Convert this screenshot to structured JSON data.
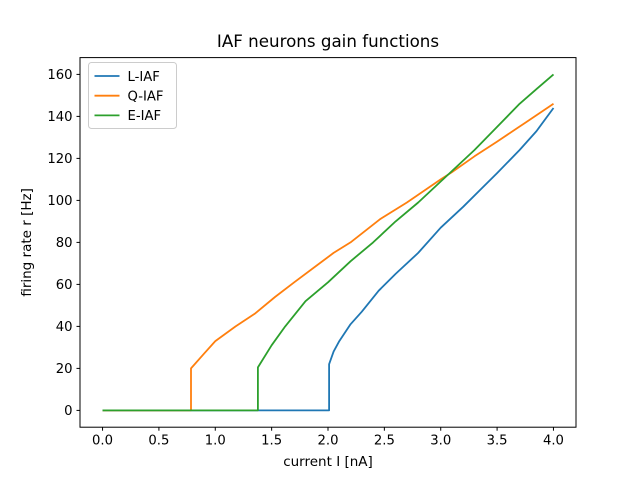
{
  "figure": {
    "background": "#ffffff"
  },
  "chart_data": {
    "type": "line",
    "title": "IAF neurons gain functions",
    "xlabel": "current I [nA]",
    "ylabel": "firing rate r [Hz]",
    "xlim": [
      -0.2,
      4.2
    ],
    "ylim": [
      -8,
      168
    ],
    "grid": false,
    "xticks": {
      "values": [
        0,
        0.5,
        1.0,
        1.5,
        2.0,
        2.5,
        3.0,
        3.5,
        4.0
      ],
      "labels": [
        "0.0",
        "0.5",
        "1.0",
        "1.5",
        "2.0",
        "2.5",
        "3.0",
        "3.5",
        "4.0"
      ]
    },
    "yticks": {
      "values": [
        0,
        20,
        40,
        60,
        80,
        100,
        120,
        140,
        160
      ],
      "labels": [
        "0",
        "20",
        "40",
        "60",
        "80",
        "100",
        "120",
        "140",
        "160"
      ]
    },
    "legend": {
      "position": "upper-left",
      "border_color": "#cccccc",
      "background": "#ffffff"
    },
    "axis_color": "#000000",
    "series": [
      {
        "name": "L-IAF",
        "color": "#1f77b4",
        "threshold_nA": 2.01,
        "points": [
          [
            0,
            0
          ],
          [
            2.01,
            0
          ],
          [
            2.01,
            22
          ],
          [
            2.05,
            28
          ],
          [
            2.1,
            33
          ],
          [
            2.2,
            41
          ],
          [
            2.3,
            47
          ],
          [
            2.45,
            57
          ],
          [
            2.6,
            65
          ],
          [
            2.8,
            75
          ],
          [
            3.0,
            87
          ],
          [
            3.2,
            97
          ],
          [
            3.35,
            105
          ],
          [
            3.5,
            113
          ],
          [
            3.7,
            124
          ],
          [
            3.85,
            133
          ],
          [
            4.0,
            144
          ]
        ]
      },
      {
        "name": "Q-IAF",
        "color": "#ff7f0e",
        "threshold_nA": 0.785,
        "points": [
          [
            0,
            0
          ],
          [
            0.785,
            0
          ],
          [
            0.785,
            20
          ],
          [
            0.9,
            27
          ],
          [
            1.0,
            33
          ],
          [
            1.18,
            40
          ],
          [
            1.35,
            46
          ],
          [
            1.53,
            54
          ],
          [
            1.7,
            61
          ],
          [
            1.9,
            69
          ],
          [
            2.05,
            75
          ],
          [
            2.2,
            80
          ],
          [
            2.46,
            91
          ],
          [
            2.7,
            99
          ],
          [
            3.0,
            110
          ],
          [
            3.1,
            113.5
          ],
          [
            3.3,
            121
          ],
          [
            3.5,
            128
          ],
          [
            3.75,
            137
          ],
          [
            4.0,
            146
          ]
        ]
      },
      {
        "name": "E-IAF",
        "color": "#2ca02c",
        "threshold_nA": 1.378,
        "points": [
          [
            0,
            0
          ],
          [
            1.378,
            0
          ],
          [
            1.378,
            20.5
          ],
          [
            1.5,
            31
          ],
          [
            1.62,
            40
          ],
          [
            1.8,
            52
          ],
          [
            2.0,
            61
          ],
          [
            2.2,
            71
          ],
          [
            2.4,
            80
          ],
          [
            2.6,
            90
          ],
          [
            2.8,
            99
          ],
          [
            3.0,
            109
          ],
          [
            3.1,
            114
          ],
          [
            3.3,
            124
          ],
          [
            3.5,
            135
          ],
          [
            3.7,
            146
          ],
          [
            3.85,
            153
          ],
          [
            4.0,
            160
          ]
        ]
      }
    ]
  }
}
